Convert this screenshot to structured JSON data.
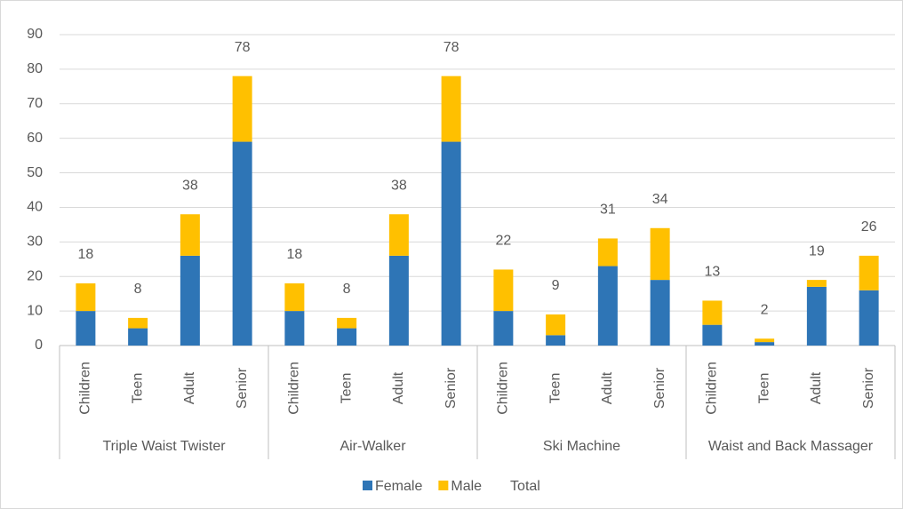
{
  "chart_data": {
    "type": "bar",
    "stacked": true,
    "groups": [
      {
        "name": "Triple Waist Twister",
        "categories": [
          "Children",
          "Teen",
          "Adult",
          "Senior"
        ]
      },
      {
        "name": "Air-Walker",
        "categories": [
          "Children",
          "Teen",
          "Adult",
          "Senior"
        ]
      },
      {
        "name": "Ski Machine",
        "categories": [
          "Children",
          "Teen",
          "Adult",
          "Senior"
        ]
      },
      {
        "name": "Waist and Back Massager",
        "categories": [
          "Children",
          "Teen",
          "Adult",
          "Senior"
        ]
      }
    ],
    "series": [
      {
        "name": "Female",
        "color": "#2e75b6",
        "values": [
          10,
          5,
          26,
          59,
          10,
          5,
          26,
          59,
          10,
          3,
          23,
          19,
          6,
          1,
          17,
          16
        ]
      },
      {
        "name": "Male",
        "color": "#ffc000",
        "values": [
          8,
          3,
          12,
          19,
          8,
          3,
          12,
          19,
          12,
          6,
          8,
          15,
          7,
          1,
          2,
          10
        ]
      },
      {
        "name": "Total",
        "values": [
          18,
          8,
          38,
          78,
          18,
          8,
          38,
          78,
          22,
          9,
          31,
          34,
          13,
          2,
          19,
          26
        ]
      }
    ],
    "ylim": [
      0,
      90
    ],
    "yticks": [
      0,
      10,
      20,
      30,
      40,
      50,
      60,
      70,
      80,
      90
    ],
    "grid": true,
    "legend": "bottom"
  }
}
